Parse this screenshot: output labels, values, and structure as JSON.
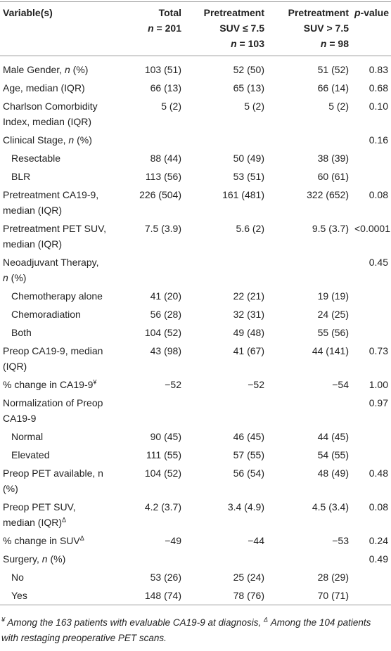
{
  "table": {
    "header": [
      [
        "Variable(s)"
      ],
      [
        "Total",
        "n = 201"
      ],
      [
        "Pretreatment",
        "SUV ≤ 7.5",
        "n = 103"
      ],
      [
        "Pretreatment",
        "SUV > 7.5",
        "n = 98"
      ],
      [
        "p-value"
      ]
    ],
    "rows": [
      {
        "label": [
          "Male Gender, n (%)"
        ],
        "cells": [
          "103 (51)",
          "52 (50)",
          "51 (52)",
          "0.83"
        ]
      },
      {
        "label": [
          "Age, median (IQR)"
        ],
        "cells": [
          "66 (13)",
          "65 (13)",
          "66 (14)",
          "0.68"
        ]
      },
      {
        "label": [
          "Charlson Comorbidity",
          "Index, median (IQR)"
        ],
        "cells": [
          "5 (2)",
          "5 (2)",
          "5 (2)",
          "0.10"
        ]
      },
      {
        "label": [
          "Clinical Stage, n (%)"
        ],
        "cells": [
          "",
          "",
          "",
          "0.16"
        ]
      },
      {
        "label": [
          "Resectable"
        ],
        "indent": true,
        "cells": [
          "88 (44)",
          "50 (49)",
          "38 (39)",
          ""
        ]
      },
      {
        "label": [
          "BLR"
        ],
        "indent": true,
        "cells": [
          "113 (56)",
          "53 (51)",
          "60 (61)",
          ""
        ]
      },
      {
        "label": [
          "Pretreatment CA19-9,",
          "median (IQR)"
        ],
        "cells": [
          "226 (504)",
          "161 (481)",
          "322 (652)",
          "0.08"
        ]
      },
      {
        "label": [
          "Pretreatment PET SUV,",
          "median (IQR)"
        ],
        "cells": [
          "7.5 (3.9)",
          "5.6 (2)",
          "9.5 (3.7)",
          "<0.0001"
        ]
      },
      {
        "label": [
          "Neoadjuvant Therapy,",
          "n (%)"
        ],
        "cells": [
          "",
          "",
          "",
          "0.45"
        ]
      },
      {
        "label": [
          "Chemotherapy alone"
        ],
        "indent": true,
        "cells": [
          "41 (20)",
          "22 (21)",
          "19 (19)",
          ""
        ]
      },
      {
        "label": [
          "Chemoradiation"
        ],
        "indent": true,
        "cells": [
          "56 (28)",
          "32 (31)",
          "24 (25)",
          ""
        ]
      },
      {
        "label": [
          "Both"
        ],
        "indent": true,
        "cells": [
          "104 (52)",
          "49 (48)",
          "55 (56)",
          ""
        ]
      },
      {
        "label": [
          "Preop CA19-9, median",
          "(IQR)"
        ],
        "cells": [
          "43 (98)",
          "41 (67)",
          "44 (141)",
          "0.73"
        ]
      },
      {
        "label": [
          "% change in CA19-9¥"
        ],
        "cells": [
          "−52",
          "−52",
          "−54",
          "1.00"
        ]
      },
      {
        "label": [
          "Normalization of Preop",
          "CA19-9"
        ],
        "cells": [
          "",
          "",
          "",
          "0.97"
        ]
      },
      {
        "label": [
          "Normal"
        ],
        "indent": true,
        "cells": [
          "90 (45)",
          "46 (45)",
          "44 (45)",
          ""
        ]
      },
      {
        "label": [
          "Elevated"
        ],
        "indent": true,
        "cells": [
          "111 (55)",
          "57 (55)",
          "54 (55)",
          ""
        ]
      },
      {
        "label": [
          "Preop PET available, n",
          "(%)"
        ],
        "cells": [
          "104 (52)",
          "56 (54)",
          "48 (49)",
          "0.48"
        ]
      },
      {
        "label": [
          "Preop PET SUV,",
          "median (IQR)Δ"
        ],
        "cells": [
          "4.2 (3.7)",
          "3.4 (4.9)",
          "4.5 (3.4)",
          "0.08"
        ]
      },
      {
        "label": [
          "% change in SUVΔ"
        ],
        "cells": [
          "−49",
          "−44",
          "−53",
          "0.24"
        ]
      },
      {
        "label": [
          "Surgery, n (%)"
        ],
        "cells": [
          "",
          "",
          "",
          "0.49"
        ]
      },
      {
        "label": [
          "No"
        ],
        "indent": true,
        "cells": [
          "53 (26)",
          "25 (24)",
          "28 (29)",
          ""
        ]
      },
      {
        "label": [
          "Yes"
        ],
        "indent": true,
        "cells": [
          "148 (74)",
          "78 (76)",
          "70 (71)",
          ""
        ]
      }
    ],
    "footnote": "¥ Among the 163 patients with evaluable CA19-9 at diagnosis, Δ Among the 104 patients with restaging preoperative PET scans."
  }
}
